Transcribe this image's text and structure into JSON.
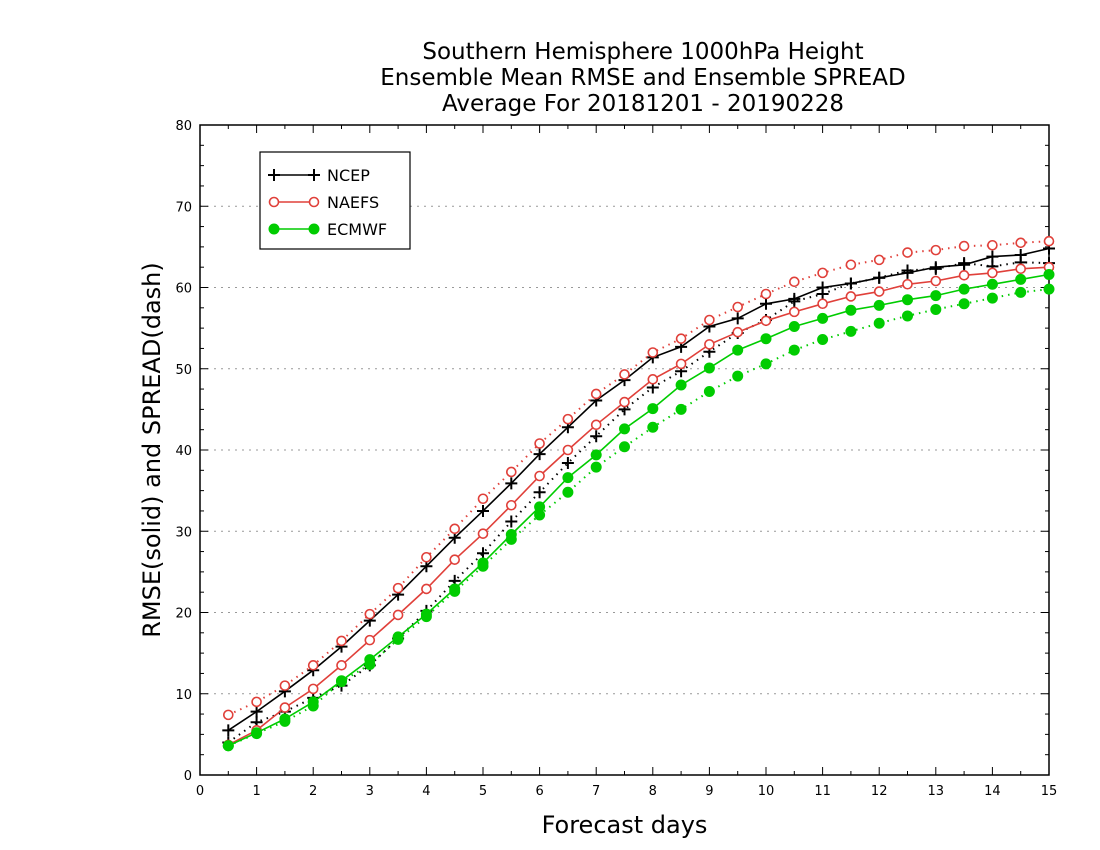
{
  "chart_data": {
    "type": "line",
    "title": [
      "Southern Hemisphere 1000hPa Height",
      "Ensemble Mean RMSE and Ensemble SPREAD",
      "Average For 20181201 - 20190228"
    ],
    "xlabel": "Forecast days",
    "ylabel": "RMSE(solid) and SPREAD(dash)",
    "xlim": [
      0,
      15
    ],
    "ylim": [
      0,
      80
    ],
    "xticks": [
      "0",
      "1",
      "2",
      "3",
      "4",
      "5",
      "6",
      "7",
      "8",
      "9",
      "10",
      "11",
      "12",
      "13",
      "14",
      "15"
    ],
    "yticks": [
      "0",
      "10",
      "20",
      "30",
      "40",
      "50",
      "60",
      "70",
      "80"
    ],
    "grid": "horizontal-dotted",
    "legend_position": "top-left",
    "x": [
      0.5,
      1,
      1.5,
      2,
      2.5,
      3,
      3.5,
      4,
      4.5,
      5,
      5.5,
      6,
      6.5,
      7,
      7.5,
      8,
      8.5,
      9,
      9.5,
      10,
      10.5,
      11,
      11.5,
      12,
      12.5,
      13,
      13.5,
      14,
      14.5,
      15
    ],
    "series": [
      {
        "name": "NCEP",
        "kind": "rmse",
        "color": "#000000",
        "marker": "plus",
        "values": [
          5.5,
          7.8,
          10.3,
          12.9,
          15.8,
          19.0,
          22.2,
          25.7,
          29.2,
          32.5,
          35.9,
          39.5,
          42.8,
          46.1,
          48.6,
          51.4,
          52.7,
          55.2,
          56.2,
          58.0,
          58.6,
          60.0,
          60.5,
          61.2,
          61.8,
          62.5,
          62.8,
          63.8,
          64.0,
          64.8
        ]
      },
      {
        "name": "",
        "kind": "spread",
        "color": "#000000",
        "marker": "plus",
        "values": [
          4.0,
          6.5,
          7.8,
          9.5,
          11.0,
          13.5,
          16.8,
          20.2,
          23.9,
          27.3,
          31.2,
          34.8,
          38.4,
          41.7,
          45.0,
          47.7,
          49.7,
          52.1,
          54.4,
          56.0,
          58.3,
          59.2,
          60.5,
          61.2,
          62.1,
          62.3,
          63.0,
          62.6,
          63.1,
          63.0
        ]
      },
      {
        "name": "NAEFS",
        "kind": "rmse",
        "color": "#e0403a",
        "marker": "open-circle",
        "values": [
          3.7,
          5.5,
          8.3,
          10.6,
          13.5,
          16.6,
          19.7,
          22.9,
          26.5,
          29.7,
          33.2,
          36.8,
          40.0,
          43.1,
          45.9,
          48.7,
          50.6,
          53.0,
          54.5,
          55.9,
          57.0,
          58.0,
          58.9,
          59.5,
          60.4,
          60.8,
          61.5,
          61.8,
          62.3,
          62.5
        ]
      },
      {
        "name": "",
        "kind": "spread",
        "color": "#e0403a",
        "marker": "open-circle",
        "values": [
          7.4,
          9.0,
          11.0,
          13.5,
          16.5,
          19.8,
          23.0,
          26.8,
          30.3,
          34.0,
          37.3,
          40.8,
          43.8,
          46.9,
          49.3,
          52.0,
          53.7,
          56.0,
          57.6,
          59.2,
          60.7,
          61.8,
          62.8,
          63.4,
          64.3,
          64.6,
          65.1,
          65.2,
          65.5,
          65.7
        ]
      },
      {
        "name": "ECMWF",
        "kind": "rmse",
        "color": "#00cc00",
        "marker": "filled-circle",
        "values": [
          3.6,
          5.2,
          6.9,
          9.0,
          11.6,
          14.2,
          17.0,
          19.8,
          22.9,
          26.1,
          29.6,
          33.0,
          36.6,
          39.4,
          42.6,
          45.1,
          48.0,
          50.1,
          52.3,
          53.7,
          55.2,
          56.2,
          57.2,
          57.8,
          58.5,
          59.0,
          59.8,
          60.4,
          61.0,
          61.6
        ]
      },
      {
        "name": "",
        "kind": "spread",
        "color": "#00cc00",
        "marker": "filled-circle",
        "values": [
          3.6,
          5.1,
          6.6,
          8.5,
          11.5,
          13.6,
          16.7,
          19.5,
          22.6,
          25.7,
          29.0,
          32.0,
          34.8,
          37.9,
          40.4,
          42.8,
          45.0,
          47.2,
          49.1,
          50.6,
          52.3,
          53.6,
          54.6,
          55.6,
          56.5,
          57.3,
          58.0,
          58.7,
          59.4,
          59.8
        ]
      }
    ]
  }
}
